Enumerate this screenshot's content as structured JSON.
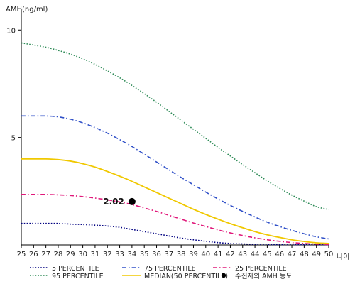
{
  "chart_data": {
    "type": "line",
    "ylabel": "AMH(ng/ml)",
    "xlabel": "나이",
    "x": [
      25,
      26,
      27,
      28,
      29,
      30,
      31,
      32,
      33,
      34,
      35,
      36,
      37,
      38,
      39,
      40,
      41,
      42,
      43,
      44,
      45,
      46,
      47,
      48,
      49,
      50
    ],
    "xlim": [
      25,
      50
    ],
    "ylim": [
      0,
      11
    ],
    "yticks": [
      5,
      10
    ],
    "series": [
      {
        "name": "5 PERCENTILE",
        "color": "#000080",
        "style": "dotted",
        "values": [
          1.0,
          1.0,
          1.0,
          1.0,
          0.97,
          0.95,
          0.92,
          0.88,
          0.82,
          0.72,
          0.62,
          0.52,
          0.42,
          0.32,
          0.24,
          0.17,
          0.11,
          0.07,
          0.05,
          0.03,
          0.02,
          0.02,
          0.02,
          0.02,
          0.02,
          0.02
        ]
      },
      {
        "name": "25 PERCENTILE",
        "color": "#e0187a",
        "style": "dashdot",
        "values": [
          2.35,
          2.35,
          2.35,
          2.33,
          2.3,
          2.25,
          2.18,
          2.1,
          2.0,
          1.88,
          1.72,
          1.56,
          1.38,
          1.2,
          1.02,
          0.86,
          0.7,
          0.56,
          0.44,
          0.33,
          0.24,
          0.17,
          0.11,
          0.07,
          0.04,
          0.02
        ]
      },
      {
        "name": "MEDIAN(50 PERCENTILE)",
        "color": "#f0c800",
        "style": "solid",
        "values": [
          4.0,
          4.0,
          4.0,
          3.97,
          3.9,
          3.78,
          3.62,
          3.42,
          3.2,
          2.96,
          2.7,
          2.44,
          2.18,
          1.92,
          1.66,
          1.42,
          1.2,
          0.99,
          0.8,
          0.62,
          0.47,
          0.35,
          0.24,
          0.16,
          0.1,
          0.07
        ]
      },
      {
        "name": "75 PERCENTILE",
        "color": "#3050c8",
        "style": "dashdot",
        "values": [
          6.0,
          6.0,
          6.0,
          5.96,
          5.85,
          5.68,
          5.46,
          5.2,
          4.9,
          4.58,
          4.22,
          3.86,
          3.5,
          3.14,
          2.8,
          2.46,
          2.14,
          1.84,
          1.56,
          1.3,
          1.06,
          0.86,
          0.68,
          0.52,
          0.38,
          0.28
        ]
      },
      {
        "name": "95 PERCENTILE",
        "color": "#2e8b57",
        "style": "dotted",
        "values": [
          9.4,
          9.3,
          9.2,
          9.05,
          8.88,
          8.66,
          8.4,
          8.1,
          7.78,
          7.42,
          7.04,
          6.64,
          6.22,
          5.8,
          5.38,
          4.96,
          4.54,
          4.14,
          3.74,
          3.36,
          2.98,
          2.64,
          2.32,
          2.04,
          1.78,
          1.65
        ]
      }
    ],
    "point": {
      "name": "수진자의 AMH 농도",
      "x": 34,
      "y": 2.02,
      "label": "2.02",
      "color": "#000000"
    },
    "legend": {
      "placement": "bottom",
      "items": [
        {
          "series": 0,
          "label": "5 PERCENTILE"
        },
        {
          "series": 1,
          "label": "25 PERCENTILE"
        },
        {
          "series": 2,
          "label": "MEDIAN(50 PERCENTILE)"
        },
        {
          "series": 3,
          "label": "75 PERCENTILE"
        },
        {
          "series": 4,
          "label": "95 PERCENTILE"
        },
        {
          "point": true,
          "label": "수진자의 AMH 농도"
        }
      ]
    },
    "grid": false
  }
}
